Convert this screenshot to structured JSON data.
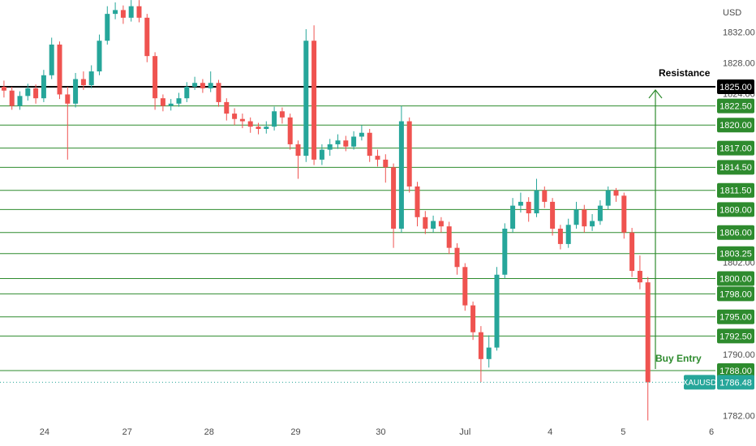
{
  "chart_data": {
    "type": "candlestick",
    "symbol": "XAUUSD",
    "currency": "USD",
    "last_price": 1786.48,
    "up_color": "#26a69a",
    "down_color": "#ef5350",
    "level_color": "#2e8b2e",
    "resistance_color": "#000000",
    "x": [
      0,
      1,
      2,
      3,
      4,
      5,
      6,
      7,
      8,
      9,
      10,
      11,
      12,
      13,
      14,
      15,
      16,
      17,
      18,
      19,
      20,
      21,
      22,
      23,
      24,
      25,
      26,
      27,
      28,
      29,
      30,
      31,
      32,
      33,
      34,
      35,
      36,
      37,
      38,
      39,
      40,
      41,
      42,
      43,
      44,
      45,
      46,
      47,
      48,
      49,
      50,
      51,
      52,
      53,
      54,
      55,
      56,
      57,
      58,
      59,
      60,
      61,
      62,
      63,
      64,
      65,
      66,
      67,
      68,
      69,
      70,
      71,
      72,
      73,
      74,
      75,
      76,
      77,
      78,
      79,
      80,
      81
    ],
    "open": [
      1825.0,
      1824.5,
      1822.5,
      1823.8,
      1824.8,
      1823.5,
      1826.5,
      1830.5,
      1824.0,
      1822.8,
      1826.0,
      1825.2,
      1827.0,
      1831.0,
      1834.5,
      1835.0,
      1834.0,
      1835.5,
      1834.0,
      1829.0,
      1823.5,
      1822.5,
      1822.8,
      1823.5,
      1825.0,
      1825.5,
      1824.8,
      1825.5,
      1823.0,
      1821.5,
      1820.8,
      1820.5,
      1819.8,
      1819.5,
      1819.8,
      1821.8,
      1821.0,
      1817.5,
      1816.0,
      1831.0,
      1815.5,
      1816.8,
      1817.5,
      1818.0,
      1817.2,
      1818.5,
      1819.0,
      1816.0,
      1815.5,
      1814.5,
      1806.5,
      1820.5,
      1812.0,
      1808.0,
      1806.5,
      1807.5,
      1806.8,
      1804.0,
      1801.5,
      1796.5,
      1793.0,
      1789.5,
      1791.0,
      1800.5,
      1806.5,
      1809.5,
      1810.0,
      1808.5,
      1811.5,
      1810.0,
      1806.5,
      1804.5,
      1807.0,
      1809.0,
      1806.8,
      1807.5,
      1809.5,
      1811.5,
      1810.8,
      1806.0,
      1801.0,
      1799.5
    ],
    "high": [
      1825.8,
      1825.0,
      1824.4,
      1825.4,
      1825.3,
      1827.2,
      1831.4,
      1830.9,
      1825.0,
      1826.8,
      1827.0,
      1827.8,
      1831.8,
      1835.5,
      1836.0,
      1835.6,
      1836.3,
      1836.3,
      1834.5,
      1829.5,
      1824.0,
      1823.4,
      1824.2,
      1825.6,
      1826.3,
      1826.0,
      1827.0,
      1825.9,
      1823.5,
      1822.2,
      1821.5,
      1821.0,
      1820.3,
      1820.5,
      1822.4,
      1822.3,
      1821.5,
      1818.0,
      1832.5,
      1833.0,
      1817.5,
      1818.2,
      1818.8,
      1818.6,
      1819.2,
      1820.0,
      1819.5,
      1816.8,
      1816.2,
      1815.0,
      1822.5,
      1821.0,
      1812.6,
      1808.8,
      1808.2,
      1808.0,
      1807.4,
      1804.6,
      1802.0,
      1797.0,
      1793.8,
      1792.6,
      1801.5,
      1807.2,
      1810.5,
      1811.2,
      1810.6,
      1813.0,
      1812.0,
      1810.5,
      1807.0,
      1807.8,
      1810.0,
      1809.6,
      1808.4,
      1810.2,
      1812.0,
      1811.8,
      1811.2,
      1806.6,
      1803.0,
      1800.2
    ],
    "low": [
      1823.6,
      1822.0,
      1822.0,
      1823.2,
      1822.8,
      1823.0,
      1826.0,
      1823.4,
      1815.5,
      1822.3,
      1824.6,
      1824.8,
      1826.5,
      1830.5,
      1833.8,
      1833.2,
      1833.5,
      1833.4,
      1828.2,
      1822.0,
      1821.8,
      1821.9,
      1822.4,
      1823.0,
      1824.6,
      1824.2,
      1824.3,
      1822.4,
      1820.6,
      1820.0,
      1819.6,
      1819.0,
      1818.8,
      1818.9,
      1819.3,
      1820.2,
      1816.8,
      1813.0,
      1815.2,
      1814.8,
      1814.8,
      1816.0,
      1816.9,
      1816.6,
      1816.8,
      1818.0,
      1815.2,
      1814.6,
      1812.5,
      1804.0,
      1806.0,
      1811.2,
      1806.8,
      1805.8,
      1806.0,
      1806.0,
      1803.2,
      1800.5,
      1795.8,
      1792.0,
      1786.5,
      1788.4,
      1790.6,
      1800.0,
      1806.0,
      1808.6,
      1807.4,
      1808.0,
      1809.2,
      1805.6,
      1803.8,
      1804.0,
      1806.5,
      1806.0,
      1806.2,
      1807.0,
      1809.0,
      1810.0,
      1805.2,
      1800.2,
      1798.6,
      1781.5
    ],
    "close": [
      1824.5,
      1822.5,
      1823.8,
      1824.8,
      1823.5,
      1826.5,
      1830.5,
      1824.0,
      1822.8,
      1826.0,
      1825.2,
      1827.0,
      1831.0,
      1834.5,
      1835.0,
      1834.0,
      1835.5,
      1834.0,
      1829.0,
      1823.5,
      1822.5,
      1822.8,
      1823.5,
      1825.0,
      1825.5,
      1824.8,
      1825.5,
      1823.0,
      1821.5,
      1820.8,
      1820.5,
      1819.8,
      1819.5,
      1819.8,
      1821.8,
      1821.0,
      1817.5,
      1816.0,
      1831.0,
      1815.5,
      1816.8,
      1817.5,
      1818.0,
      1817.2,
      1818.5,
      1819.0,
      1816.0,
      1815.5,
      1814.5,
      1806.5,
      1820.5,
      1812.0,
      1808.0,
      1806.5,
      1807.5,
      1806.8,
      1804.0,
      1801.5,
      1796.5,
      1793.0,
      1789.5,
      1791.0,
      1800.5,
      1806.5,
      1809.5,
      1810.0,
      1808.5,
      1811.5,
      1810.0,
      1806.5,
      1804.5,
      1807.0,
      1809.0,
      1806.8,
      1807.5,
      1809.5,
      1811.5,
      1810.8,
      1806.0,
      1801.0,
      1799.5,
      1786.48
    ],
    "xlim": [
      -0.5,
      89.5
    ],
    "ylim": [
      1781.34,
      1836.31
    ],
    "xticks": [
      {
        "value": 5.1,
        "label": "24"
      },
      {
        "value": 15.5,
        "label": "27"
      },
      {
        "value": 25.8,
        "label": "28"
      },
      {
        "value": 36.7,
        "label": "29"
      },
      {
        "value": 47.4,
        "label": "30"
      },
      {
        "value": 58,
        "label": "Jul"
      },
      {
        "value": 68.7,
        "label": "4"
      },
      {
        "value": 77.9,
        "label": "5"
      },
      {
        "value": 89,
        "label": "6"
      }
    ],
    "yticks": [
      {
        "value": 1782,
        "label": "1782.00"
      },
      {
        "value": 1790,
        "label": "1790.00"
      },
      {
        "value": 1802,
        "label": "1802.00"
      },
      {
        "value": 1824,
        "label": "1824.00"
      },
      {
        "value": 1828,
        "label": "1828.00"
      },
      {
        "value": 1832,
        "label": "1832.00"
      }
    ],
    "levels": [
      {
        "value": 1825,
        "label": "1825.00"
      },
      {
        "value": 1822.5,
        "label": "1822.50"
      },
      {
        "value": 1820,
        "label": "1820.00"
      },
      {
        "value": 1817,
        "label": "1817.00"
      },
      {
        "value": 1814.5,
        "label": "1814.50"
      },
      {
        "value": 1811.5,
        "label": "1811.50"
      },
      {
        "value": 1809,
        "label": "1809.00"
      },
      {
        "value": 1806,
        "label": "1806.00"
      },
      {
        "value": 1803.25,
        "label": "1803.25"
      },
      {
        "value": 1800,
        "label": "1800.00"
      },
      {
        "value": 1798,
        "label": "1798.00"
      },
      {
        "value": 1795,
        "label": "1795.00"
      },
      {
        "value": 1792.5,
        "label": "1792.50"
      },
      {
        "value": 1788,
        "label": "1788.00"
      }
    ],
    "annotations": [
      "Resistance",
      "Buy Entry"
    ]
  }
}
